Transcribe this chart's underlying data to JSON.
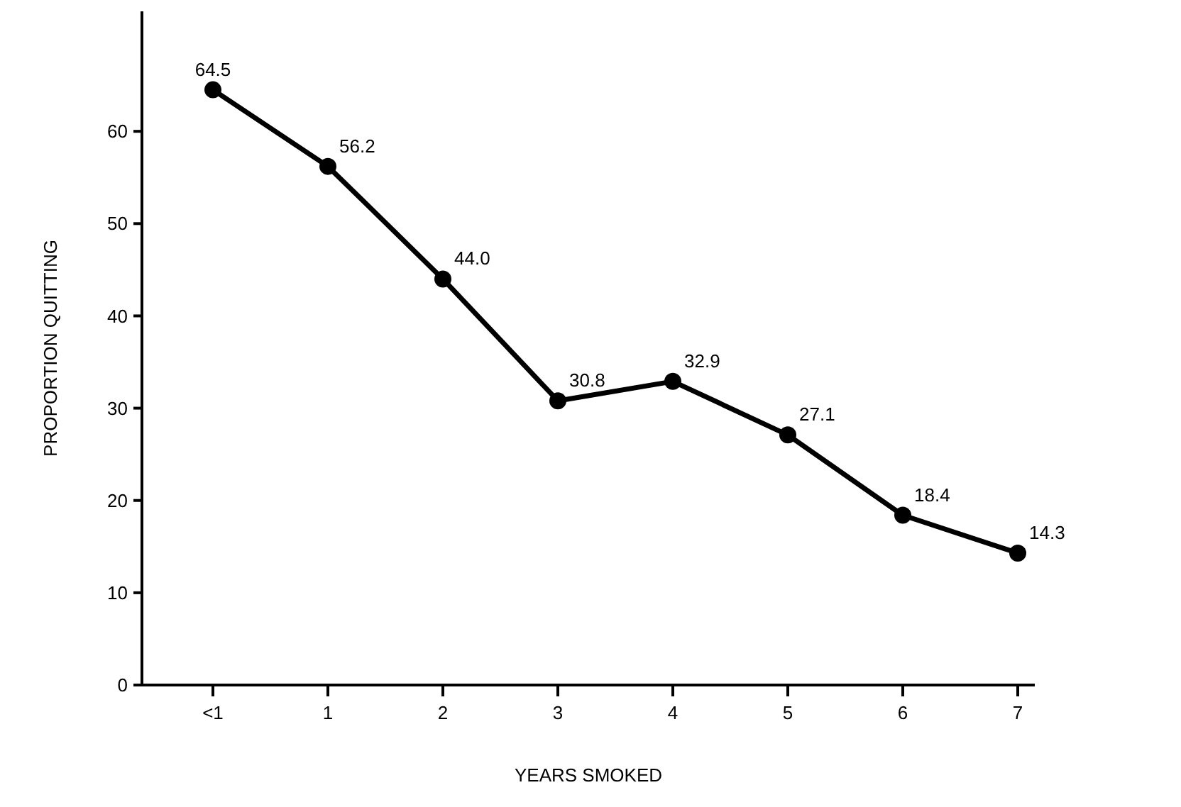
{
  "chart_data": {
    "type": "line",
    "xlabel": "YEARS SMOKED",
    "ylabel": "PROPORTION QUITTING",
    "categories": [
      "<1",
      "1",
      "2",
      "3",
      "4",
      "5",
      "6",
      "7"
    ],
    "series": [
      {
        "color": "#000000",
        "values": [
          64.5,
          56.2,
          44.0,
          30.8,
          32.9,
          27.1,
          18.4,
          14.3
        ],
        "value_labels": [
          "64.5",
          "56.2",
          "44.0",
          "30.8",
          "32.9",
          "27.1",
          "18.4",
          "14.3"
        ]
      }
    ],
    "ylim": [
      0,
      73
    ],
    "yticks": [
      0,
      10,
      20,
      30,
      40,
      50,
      60
    ],
    "marker": "circle",
    "line_style": "solid",
    "grid": false
  }
}
